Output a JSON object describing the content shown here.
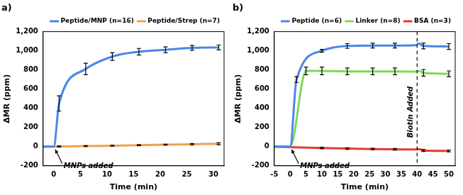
{
  "chart_data": [
    {
      "type": "line",
      "title": "a)",
      "x_label": "Time (min)",
      "y_label": "ΔMR (ppm)",
      "xlim": [
        -2,
        32
      ],
      "xticks": [
        0,
        5,
        10,
        15,
        20,
        25,
        30
      ],
      "ylim": [
        -200,
        1200
      ],
      "yticks": [
        -200,
        0,
        200,
        400,
        600,
        800,
        {
          "value": 1000,
          "label": "1,000"
        },
        {
          "value": 1200,
          "label": "1,200"
        }
      ],
      "grid": false,
      "legend": "top",
      "marker": "none",
      "series": [
        {
          "name": "Peptide/MNP (n=16)",
          "color": "#4a86e8",
          "x": [
            -2,
            0,
            1,
            6,
            11,
            16,
            21,
            26,
            31
          ],
          "values": [
            0,
            0,
            450,
            810,
            940,
            990,
            1010,
            1030,
            1035
          ],
          "errors": [
            null,
            null,
            80,
            60,
            40,
            35,
            30,
            25,
            25
          ]
        },
        {
          "name": "Peptide/Strep (n=7)",
          "color": "#f0a04b",
          "x": [
            -2,
            0,
            1,
            6,
            11,
            16,
            21,
            26,
            31
          ],
          "values": [
            0,
            0,
            2,
            5,
            10,
            15,
            20,
            25,
            30
          ],
          "errors": [
            null,
            null,
            5,
            5,
            5,
            5,
            5,
            8,
            10
          ]
        }
      ],
      "annotations": [
        {
          "text": "MNPs added",
          "x": 0
        }
      ]
    },
    {
      "type": "line",
      "title": "b)",
      "x_label": "Time (min)",
      "y_label": "ΔMR (ppm)",
      "xlim": [
        -5,
        52
      ],
      "xticks": [
        -5,
        0,
        5,
        10,
        15,
        20,
        25,
        30,
        35,
        40,
        45,
        50
      ],
      "ylim": [
        -200,
        1200
      ],
      "yticks": [
        -200,
        0,
        200,
        400,
        600,
        800,
        {
          "value": 1000,
          "label": "1,000"
        },
        {
          "value": 1200,
          "label": "1,200"
        }
      ],
      "grid": false,
      "legend": "top",
      "marker": "none",
      "series": [
        {
          "name": "Peptide (n=6)",
          "color": "#4a86e8",
          "x": [
            -5,
            0,
            2,
            10,
            18,
            26,
            33,
            39.5,
            40.5,
            42,
            50
          ],
          "values": [
            0,
            0,
            700,
            1000,
            1050,
            1055,
            1055,
            1058,
            1075,
            1050,
            1045
          ],
          "errors": [
            null,
            null,
            30,
            15,
            25,
            25,
            25,
            null,
            null,
            30,
            30
          ]
        },
        {
          "name": "Linker (n=8)",
          "color": "#7ed957",
          "x": [
            -5,
            0,
            5,
            10,
            18,
            26,
            33,
            39.5,
            40.5,
            42,
            50
          ],
          "values": [
            0,
            0,
            790,
            790,
            785,
            785,
            785,
            782,
            790,
            770,
            760
          ],
          "errors": [
            null,
            null,
            40,
            40,
            35,
            35,
            35,
            null,
            null,
            35,
            30
          ]
        },
        {
          "name": "BSA (n=3)",
          "color": "#e53935",
          "x": [
            -5,
            0,
            10,
            18,
            26,
            33,
            39.5,
            40.5,
            42,
            50
          ],
          "values": [
            0,
            -5,
            -15,
            -20,
            -25,
            -28,
            -30,
            -25,
            -40,
            -45
          ],
          "errors": [
            null,
            null,
            8,
            8,
            8,
            8,
            null,
            null,
            10,
            10
          ]
        }
      ],
      "annotations": [
        {
          "text": "MNPs added",
          "x": 0
        },
        {
          "text": "Biotin Added",
          "x": 40,
          "line_style": "dashed"
        }
      ]
    }
  ]
}
